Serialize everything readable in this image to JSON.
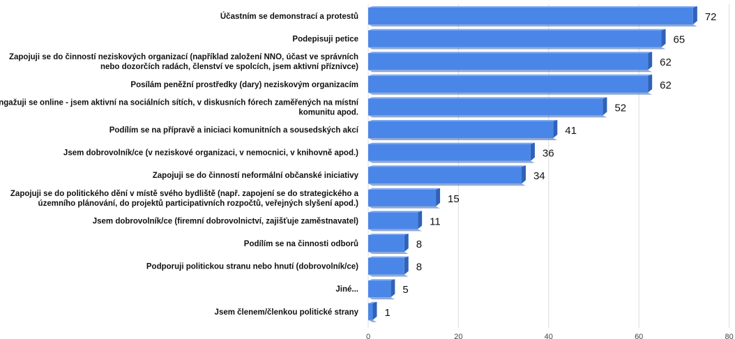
{
  "chart_data": {
    "type": "bar",
    "orientation": "horizontal",
    "title": "",
    "xlabel": "",
    "ylabel": "",
    "xlim": [
      0,
      80
    ],
    "ticks": [
      0,
      20,
      40,
      60,
      80
    ],
    "grid": true,
    "bar_color": "#4a86e8",
    "categories": [
      [
        "Účastním se demonstrací a protestů"
      ],
      [
        "Podepisuji petice"
      ],
      [
        "Zapojuji se do činností neziskových organizací (například založení NNO, účast ve správních",
        "nebo dozorčích radách, členství ve spolcích, jsem aktivní příznivce)"
      ],
      [
        "Posílám peněžní prostředky (dary) neziskovým organizacím"
      ],
      [
        "Angažuji se online - jsem aktivní na sociálních sítích, v diskusních fórech zaměřených na místní",
        "komunitu apod."
      ],
      [
        "Podílím se na přípravě a iniciaci komunitních a sousedských akcí"
      ],
      [
        "Jsem dobrovolník/ce (v neziskové organizaci, v nemocnici, v knihovně apod.)"
      ],
      [
        "Zapojuji se do činností neformální občanské iniciativy"
      ],
      [
        "Zapojuji se do politického dění v místě svého bydliště (např. zapojení se do strategického a",
        "územního plánování, do projektů participativních rozpočtů, veřejných slyšení apod.)"
      ],
      [
        "Jsem dobrovolník/ce (firemní dobrovolnictví, zajišťuje zaměstnavatel)"
      ],
      [
        "Podílím se na činnosti odborů"
      ],
      [
        "Podporuji politickou stranu nebo hnutí (dobrovolník/ce)"
      ],
      [
        "Jiné..."
      ],
      [
        "Jsem členem/členkou politické strany"
      ]
    ],
    "values": [
      72,
      65,
      62,
      62,
      52,
      41,
      36,
      34,
      15,
      11,
      8,
      8,
      5,
      1
    ]
  }
}
